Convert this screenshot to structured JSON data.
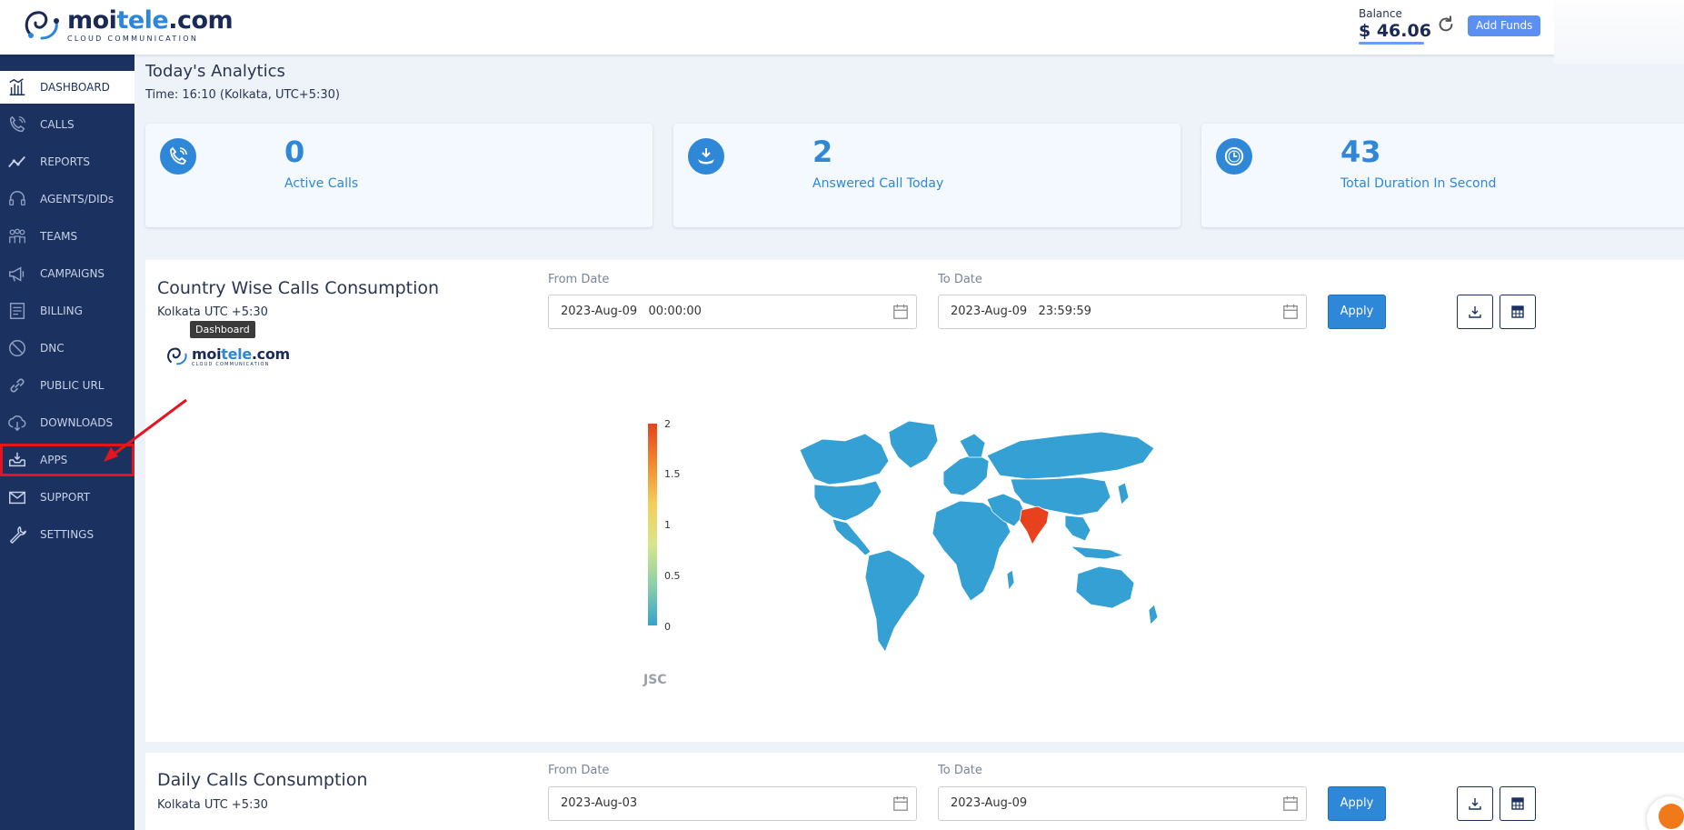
{
  "header": {
    "logo_main_a": "moi",
    "logo_main_b": "tele",
    "logo_main_c": ".com",
    "logo_sub": "CLOUD COMMUNICATION",
    "balance_label": "Balance",
    "balance_value": "$ 46.06",
    "add_funds_label": "Add Funds"
  },
  "sidebar": {
    "items": [
      {
        "label": "DASHBOARD",
        "icon": "dashboard-icon"
      },
      {
        "label": "CALLS",
        "icon": "phone-icon"
      },
      {
        "label": "REPORTS",
        "icon": "chart-line-icon"
      },
      {
        "label": "AGENTS/DIDs",
        "icon": "headset-icon"
      },
      {
        "label": "TEAMS",
        "icon": "team-icon"
      },
      {
        "label": "CAMPAIGNS",
        "icon": "megaphone-icon"
      },
      {
        "label": "BILLING",
        "icon": "billing-icon"
      },
      {
        "label": "DNC",
        "icon": "ban-icon"
      },
      {
        "label": "PUBLIC URL",
        "icon": "link-icon"
      },
      {
        "label": "DOWNLOADS",
        "icon": "cloud-download-icon"
      },
      {
        "label": "APPS",
        "icon": "inbox-download-icon"
      },
      {
        "label": "SUPPORT",
        "icon": "mail-icon"
      },
      {
        "label": "SETTINGS",
        "icon": "wrench-icon"
      }
    ]
  },
  "main": {
    "title": "Today's Analytics",
    "time": "Time: 16:10 (Kolkata, UTC+5:30)",
    "stats": [
      {
        "value": "0",
        "label": "Active Calls",
        "icon": "phone-icon"
      },
      {
        "value": "2",
        "label": "Answered Call Today",
        "icon": "call-received-icon"
      },
      {
        "value": "43",
        "label": "Total Duration In Second",
        "icon": "clock-icon"
      }
    ]
  },
  "country_panel": {
    "title": "Country Wise Calls Consumption",
    "timezone": "Kolkata UTC +5:30",
    "from_label": "From Date",
    "from_value": "2023-Aug-09   00:00:00",
    "to_label": "To Date",
    "to_value": "2023-Aug-09   23:59:59",
    "apply_label": "Apply",
    "tooltip": "Dashboard",
    "mini_logo_a": "moi",
    "mini_logo_b": "tele",
    "mini_logo_c": ".com",
    "mini_logo_sub": "CLOUD COMMUNICATION",
    "colorbar_ticks": [
      "2",
      "1.5",
      "1",
      "0.5",
      "0"
    ],
    "jsc_label": "JSC",
    "map_highlight": {
      "country": "India",
      "value": 2,
      "color": "#e8411e"
    },
    "map_base_color": "#35a0d4"
  },
  "daily_panel": {
    "title": "Daily Calls Consumption",
    "timezone": "Kolkata UTC +5:30",
    "from_label": "From Date",
    "from_value": "2023-Aug-03",
    "to_label": "To Date",
    "to_value": "2023-Aug-09",
    "apply_label": "Apply"
  },
  "colors": {
    "sidebar": "#1b3160",
    "accent": "#2f87d7",
    "highlight_box": "#e4151f"
  }
}
